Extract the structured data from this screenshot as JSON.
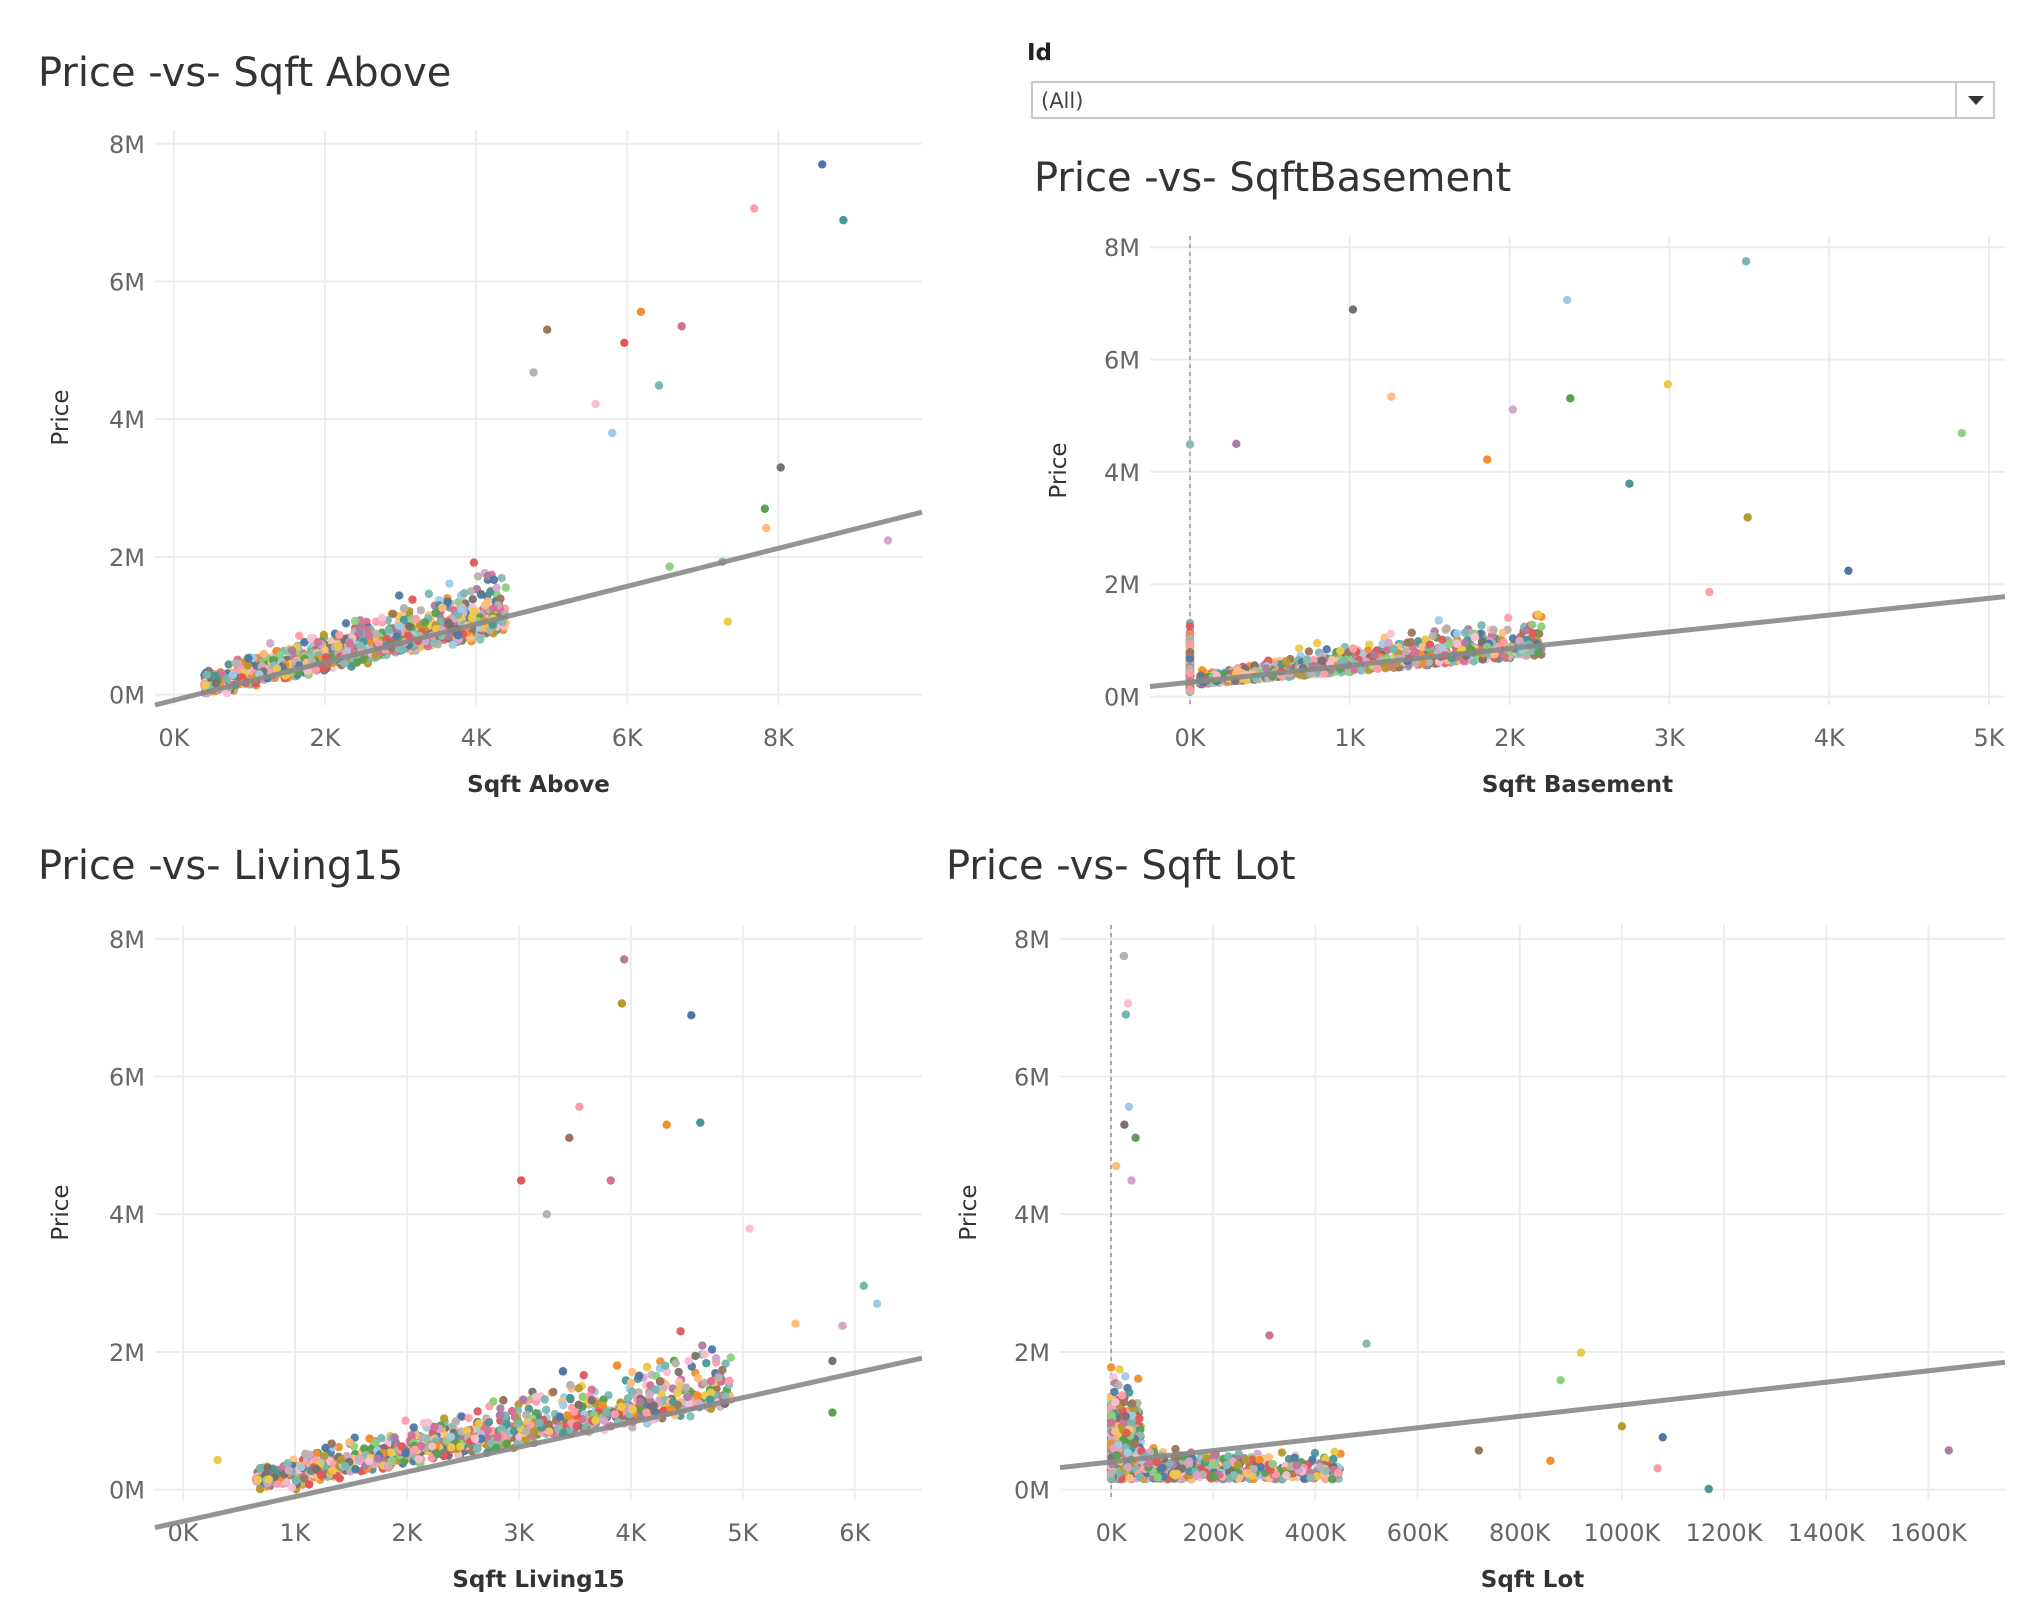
{
  "filter": {
    "label": "Id",
    "value": "(All)",
    "icon": "chevron-down-icon"
  },
  "palette": [
    "#4e79a7",
    "#f28e2b",
    "#e15759",
    "#76b7b2",
    "#59a14f",
    "#edc948",
    "#b07aa1",
    "#ff9da7",
    "#9c755f",
    "#bab0ac",
    "#a0cbe8",
    "#ffbe7d",
    "#8cd17d",
    "#b6992d",
    "#499894",
    "#d37295",
    "#fabfd2",
    "#79706e",
    "#d4a6c8",
    "#86bcb6"
  ],
  "trend_color": "#888888",
  "chart_data": [
    {
      "type": "scatter",
      "title": "Price -vs- Sqft Above",
      "xlabel": "Sqft Above",
      "ylabel": "Price",
      "xlim": [
        -250,
        9900
      ],
      "ylim": [
        -150000,
        8200000
      ],
      "xticks": [
        {
          "v": 0,
          "t": "0K"
        },
        {
          "v": 2000,
          "t": "2K"
        },
        {
          "v": 4000,
          "t": "4K"
        },
        {
          "v": 6000,
          "t": "6K"
        },
        {
          "v": 8000,
          "t": "8K"
        }
      ],
      "yticks": [
        {
          "v": 0,
          "t": "0M"
        },
        {
          "v": 2000000,
          "t": "2M"
        },
        {
          "v": 4000000,
          "t": "4M"
        },
        {
          "v": 6000000,
          "t": "6M"
        },
        {
          "v": 8000000,
          "t": "8M"
        }
      ],
      "trend": {
        "x": [
          -250,
          9900
        ],
        "y": [
          -150000,
          2650000
        ]
      },
      "cluster": {
        "type": "linear",
        "xmin": 400,
        "xmax": 4400,
        "slope": 265,
        "spread": 900000,
        "n": 1400
      },
      "outliers": [
        {
          "x": 8580,
          "y": 7700000
        },
        {
          "x": 7680,
          "y": 7060000
        },
        {
          "x": 8860,
          "y": 6890000
        },
        {
          "x": 6180,
          "y": 5560000
        },
        {
          "x": 4940,
          "y": 5300000
        },
        {
          "x": 6720,
          "y": 5350000
        },
        {
          "x": 5960,
          "y": 5110000
        },
        {
          "x": 4760,
          "y": 4680000
        },
        {
          "x": 5580,
          "y": 4220000
        },
        {
          "x": 6420,
          "y": 4490000
        },
        {
          "x": 5800,
          "y": 3800000
        },
        {
          "x": 8030,
          "y": 3300000
        },
        {
          "x": 7820,
          "y": 2700000
        },
        {
          "x": 7840,
          "y": 2420000
        },
        {
          "x": 9450,
          "y": 2240000
        },
        {
          "x": 7330,
          "y": 1060000
        },
        {
          "x": 6560,
          "y": 1860000
        },
        {
          "x": 7260,
          "y": 1930000
        }
      ]
    },
    {
      "type": "scatter",
      "title": "Price -vs- SqftBasement",
      "xlabel": "Sqft Basement",
      "ylabel": "Price",
      "xlim": [
        -250,
        5100
      ],
      "ylim": [
        -150000,
        8200000
      ],
      "xticks": [
        {
          "v": 0,
          "t": "0K"
        },
        {
          "v": 1000,
          "t": "1K"
        },
        {
          "v": 2000,
          "t": "2K"
        },
        {
          "v": 3000,
          "t": "3K"
        },
        {
          "v": 4000,
          "t": "4K"
        },
        {
          "v": 5000,
          "t": "5K"
        }
      ],
      "yticks": [
        {
          "v": 0,
          "t": "0M"
        },
        {
          "v": 2000000,
          "t": "2M"
        },
        {
          "v": 4000000,
          "t": "4M"
        },
        {
          "v": 6000000,
          "t": "6M"
        },
        {
          "v": 8000000,
          "t": "8M"
        }
      ],
      "trend": {
        "x": [
          -250,
          5100
        ],
        "y": [
          180000,
          1780000
        ]
      },
      "cluster": {
        "type": "basement",
        "xmin": 0,
        "xmax": 2200,
        "slope": 300,
        "spread": 800000,
        "n": 1200
      },
      "outliers": [
        {
          "x": 3480,
          "y": 7750000
        },
        {
          "x": 2360,
          "y": 7060000
        },
        {
          "x": 1020,
          "y": 6890000
        },
        {
          "x": 2380,
          "y": 5310000
        },
        {
          "x": 1260,
          "y": 5340000
        },
        {
          "x": 2020,
          "y": 5110000
        },
        {
          "x": 2990,
          "y": 5560000
        },
        {
          "x": 4830,
          "y": 4690000
        },
        {
          "x": 0,
          "y": 4490000
        },
        {
          "x": 290,
          "y": 4500000
        },
        {
          "x": 3490,
          "y": 3190000
        },
        {
          "x": 4120,
          "y": 2240000
        },
        {
          "x": 3250,
          "y": 1860000
        },
        {
          "x": 2750,
          "y": 3790000
        },
        {
          "x": 1860,
          "y": 4220000
        }
      ]
    },
    {
      "type": "scatter",
      "title": "Price -vs- Living15",
      "xlabel": "Sqft Living15",
      "ylabel": "Price",
      "xlim": [
        -250,
        6600
      ],
      "ylim": [
        -150000,
        8200000
      ],
      "xticks": [
        {
          "v": 0,
          "t": "0K"
        },
        {
          "v": 1000,
          "t": "1K"
        },
        {
          "v": 2000,
          "t": "2K"
        },
        {
          "v": 3000,
          "t": "3K"
        },
        {
          "v": 4000,
          "t": "4K"
        },
        {
          "v": 5000,
          "t": "5K"
        },
        {
          "v": 6000,
          "t": "6K"
        }
      ],
      "yticks": [
        {
          "v": 0,
          "t": "0M"
        },
        {
          "v": 2000000,
          "t": "2M"
        },
        {
          "v": 4000000,
          "t": "4M"
        },
        {
          "v": 6000000,
          "t": "6M"
        },
        {
          "v": 8000000,
          "t": "8M"
        }
      ],
      "trend": {
        "x": [
          -250,
          6600
        ],
        "y": [
          -550000,
          1910000
        ]
      },
      "cluster": {
        "type": "linear",
        "xmin": 650,
        "xmax": 4900,
        "slope": 330,
        "spread": 1000000,
        "n": 1500
      },
      "outliers": [
        {
          "x": 3940,
          "y": 7700000
        },
        {
          "x": 3920,
          "y": 7060000
        },
        {
          "x": 4540,
          "y": 6890000
        },
        {
          "x": 3540,
          "y": 5560000
        },
        {
          "x": 4620,
          "y": 5330000
        },
        {
          "x": 4320,
          "y": 5300000
        },
        {
          "x": 3450,
          "y": 5110000
        },
        {
          "x": 3820,
          "y": 4490000
        },
        {
          "x": 3020,
          "y": 4490000
        },
        {
          "x": 3250,
          "y": 4000000
        },
        {
          "x": 5060,
          "y": 3790000
        },
        {
          "x": 6080,
          "y": 2960000
        },
        {
          "x": 6200,
          "y": 2700000
        },
        {
          "x": 5800,
          "y": 1870000
        },
        {
          "x": 5800,
          "y": 1120000
        },
        {
          "x": 5470,
          "y": 2410000
        },
        {
          "x": 5890,
          "y": 2380000
        },
        {
          "x": 310,
          "y": 430000
        }
      ]
    },
    {
      "type": "scatter",
      "title": "Price -vs- Sqft Lot",
      "xlabel": "Sqft Lot",
      "ylabel": "Price",
      "xlim": [
        -100000,
        1750000
      ],
      "ylim": [
        -150000,
        8200000
      ],
      "xticks": [
        {
          "v": 0,
          "t": "0K"
        },
        {
          "v": 200000,
          "t": "200K"
        },
        {
          "v": 400000,
          "t": "400K"
        },
        {
          "v": 600000,
          "t": "600K"
        },
        {
          "v": 800000,
          "t": "800K"
        },
        {
          "v": 1000000,
          "t": "1000K"
        },
        {
          "v": 1200000,
          "t": "1200K"
        },
        {
          "v": 1400000,
          "t": "1400K"
        },
        {
          "v": 1600000,
          "t": "1600K"
        }
      ],
      "yticks": [
        {
          "v": 0,
          "t": "0M"
        },
        {
          "v": 2000000,
          "t": "2M"
        },
        {
          "v": 4000000,
          "t": "4M"
        },
        {
          "v": 6000000,
          "t": "6M"
        },
        {
          "v": 8000000,
          "t": "8M"
        }
      ],
      "trend": {
        "x": [
          -100000,
          1750000
        ],
        "y": [
          320000,
          1850000
        ]
      },
      "cluster": {
        "type": "lot",
        "xmin": 0,
        "xmax": 450000,
        "slope": 0,
        "spread": 1200000,
        "n": 1300
      },
      "outliers": [
        {
          "x": 25000,
          "y": 7750000
        },
        {
          "x": 33000,
          "y": 7060000
        },
        {
          "x": 29000,
          "y": 6900000
        },
        {
          "x": 35000,
          "y": 5560000
        },
        {
          "x": 26000,
          "y": 5300000
        },
        {
          "x": 48000,
          "y": 5110000
        },
        {
          "x": 10000,
          "y": 4700000
        },
        {
          "x": 40000,
          "y": 4490000
        },
        {
          "x": 920000,
          "y": 1990000
        },
        {
          "x": 880000,
          "y": 1590000
        },
        {
          "x": 500000,
          "y": 2120000
        },
        {
          "x": 1640000,
          "y": 570000
        },
        {
          "x": 1000000,
          "y": 920000
        },
        {
          "x": 1080000,
          "y": 760000
        },
        {
          "x": 1070000,
          "y": 310000
        },
        {
          "x": 1170000,
          "y": 10000
        },
        {
          "x": 860000,
          "y": 420000
        },
        {
          "x": 720000,
          "y": 570000
        },
        {
          "x": 310000,
          "y": 2240000
        }
      ]
    }
  ]
}
